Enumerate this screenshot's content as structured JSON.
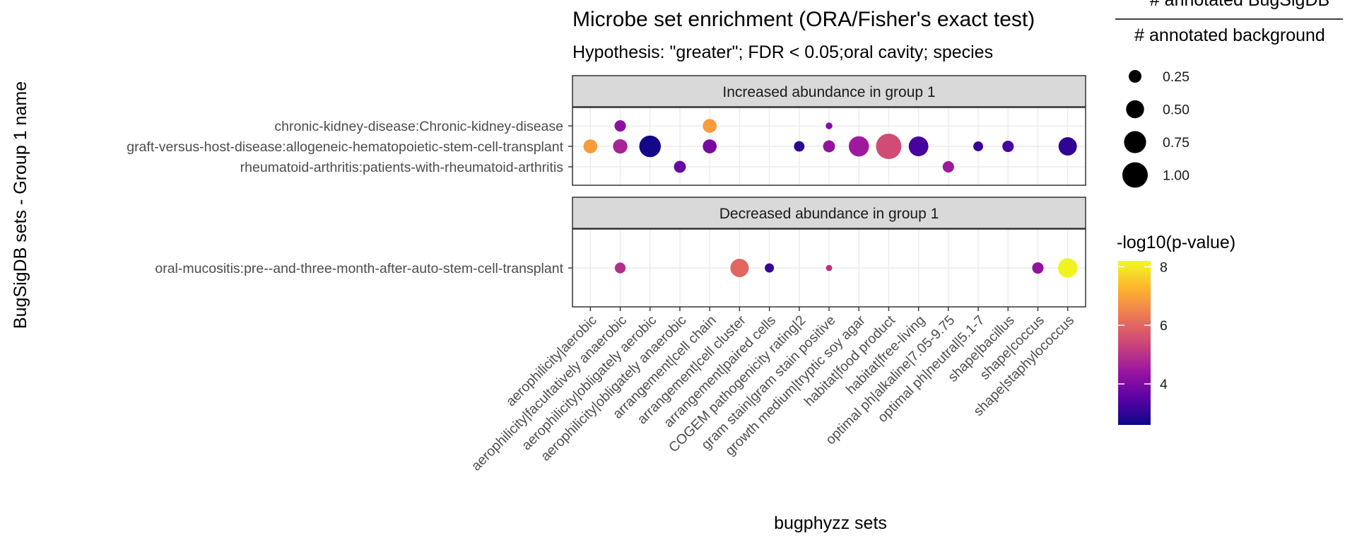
{
  "chart_data": {
    "type": "scatter",
    "title": "Microbe set enrichment (ORA/Fisher's exact test)",
    "subtitle": "Hypothesis: \"greater\"; FDR < 0.05;oral cavity; species",
    "xlabel": "bugphyzz sets",
    "ylabel": "BugSigDB sets - Group 1 name",
    "size_legend": {
      "title_numerator": "# annotated BugSigDB",
      "title_denominator": "# annotated background",
      "breaks": [
        0.25,
        0.5,
        0.75,
        1.0
      ],
      "labels": [
        "0.25",
        "0.50",
        "0.75",
        "1.00"
      ]
    },
    "color_legend": {
      "title": "-log10(p-value)",
      "range": [
        2.6,
        8.2
      ],
      "breaks": [
        4,
        6,
        8
      ],
      "labels": [
        "4",
        "6",
        "8"
      ],
      "palette": [
        "#0d0887",
        "#5c01a6",
        "#9c179e",
        "#cc4778",
        "#ed7953",
        "#fdb42f",
        "#f0f921"
      ]
    },
    "x_categories": [
      "aerophilicity|aerobic",
      "aerophilicity|facultatively anaerobic",
      "aerophilicity|obligately aerobic",
      "aerophilicity|obligately anaerobic",
      "arrangement|cell chain",
      "arrangement|cell cluster",
      "arrangement|paired cells",
      "COGEM pathogenicity rating|2",
      "gram stain|gram stain positive",
      "growth medium|tryptic soy agar",
      "habitat|food product",
      "habitat|free-living",
      "optimal ph|alkaline|7.05-9.75",
      "optimal ph|neutral|5.1-7",
      "shape|bacillus",
      "shape|coccus",
      "shape|staphylococcus"
    ],
    "panels": [
      {
        "strip": "Increased abundance in group 1",
        "y_categories": [
          "chronic-kidney-disease:Chronic-kidney-disease",
          "graft-versus-host-disease:allogeneic-hematopoietic-stem-cell-transplant",
          "rheumatoid-arthritis:patients-with-rheumatoid-arthritis"
        ],
        "points": [
          {
            "x": "aerophilicity|facultatively anaerobic",
            "y": "chronic-kidney-disease:Chronic-kidney-disease",
            "size": 0.2,
            "logp": 4.2
          },
          {
            "x": "arrangement|cell chain",
            "y": "chronic-kidney-disease:Chronic-kidney-disease",
            "size": 0.3,
            "logp": 6.9
          },
          {
            "x": "gram stain|gram stain positive",
            "y": "chronic-kidney-disease:Chronic-kidney-disease",
            "size": 0.07,
            "logp": 4.1
          },
          {
            "x": "aerophilicity|aerobic",
            "y": "graft-versus-host-disease:allogeneic-hematopoietic-stem-cell-transplant",
            "size": 0.3,
            "logp": 6.9
          },
          {
            "x": "aerophilicity|facultatively anaerobic",
            "y": "graft-versus-host-disease:allogeneic-hematopoietic-stem-cell-transplant",
            "size": 0.32,
            "logp": 4.7
          },
          {
            "x": "aerophilicity|obligately aerobic",
            "y": "graft-versus-host-disease:allogeneic-hematopoietic-stem-cell-transplant",
            "size": 0.72,
            "logp": 2.7
          },
          {
            "x": "arrangement|cell chain",
            "y": "graft-versus-host-disease:allogeneic-hematopoietic-stem-cell-transplant",
            "size": 0.3,
            "logp": 3.9
          },
          {
            "x": "COGEM pathogenicity rating|2",
            "y": "graft-versus-host-disease:allogeneic-hematopoietic-stem-cell-transplant",
            "size": 0.17,
            "logp": 3.0
          },
          {
            "x": "gram stain|gram stain positive",
            "y": "graft-versus-host-disease:allogeneic-hematopoietic-stem-cell-transplant",
            "size": 0.22,
            "logp": 4.3
          },
          {
            "x": "growth medium|tryptic soy agar",
            "y": "graft-versus-host-disease:allogeneic-hematopoietic-stem-cell-transplant",
            "size": 0.63,
            "logp": 4.5
          },
          {
            "x": "habitat|food product",
            "y": "graft-versus-host-disease:allogeneic-hematopoietic-stem-cell-transplant",
            "size": 1.0,
            "logp": 5.5
          },
          {
            "x": "habitat|free-living",
            "y": "graft-versus-host-disease:allogeneic-hematopoietic-stem-cell-transplant",
            "size": 0.6,
            "logp": 3.3
          },
          {
            "x": "optimal ph|neutral|5.1-7",
            "y": "graft-versus-host-disease:allogeneic-hematopoietic-stem-cell-transplant",
            "size": 0.15,
            "logp": 3.1
          },
          {
            "x": "shape|bacillus",
            "y": "graft-versus-host-disease:allogeneic-hematopoietic-stem-cell-transplant",
            "size": 0.2,
            "logp": 3.3
          },
          {
            "x": "shape|staphylococcus",
            "y": "graft-versus-host-disease:allogeneic-hematopoietic-stem-cell-transplant",
            "size": 0.52,
            "logp": 3.0
          },
          {
            "x": "aerophilicity|obligately anaerobic",
            "y": "rheumatoid-arthritis:patients-with-rheumatoid-arthritis",
            "size": 0.22,
            "logp": 3.7
          },
          {
            "x": "optimal ph|alkaline|7.05-9.75",
            "y": "rheumatoid-arthritis:patients-with-rheumatoid-arthritis",
            "size": 0.2,
            "logp": 4.5
          }
        ]
      },
      {
        "strip": "Decreased abundance in group 1",
        "y_categories": [
          "oral-mucositis:pre--and-three-month-after-auto-stem-cell-transplant"
        ],
        "points": [
          {
            "x": "aerophilicity|facultatively anaerobic",
            "y": "oral-mucositis:pre--and-three-month-after-auto-stem-cell-transplant",
            "size": 0.18,
            "logp": 4.9
          },
          {
            "x": "arrangement|cell cluster",
            "y": "oral-mucositis:pre--and-three-month-after-auto-stem-cell-transplant",
            "size": 0.52,
            "logp": 6.0
          },
          {
            "x": "arrangement|paired cells",
            "y": "oral-mucositis:pre--and-three-month-after-auto-stem-cell-transplant",
            "size": 0.13,
            "logp": 3.1
          },
          {
            "x": "gram stain|gram stain positive",
            "y": "oral-mucositis:pre--and-three-month-after-auto-stem-cell-transplant",
            "size": 0.06,
            "logp": 5.0
          },
          {
            "x": "shape|coccus",
            "y": "oral-mucositis:pre--and-three-month-after-auto-stem-cell-transplant",
            "size": 0.2,
            "logp": 4.3
          },
          {
            "x": "shape|staphylococcus",
            "y": "oral-mucositis:pre--and-three-month-after-auto-stem-cell-transplant",
            "size": 0.58,
            "logp": 8.1
          }
        ]
      }
    ]
  }
}
